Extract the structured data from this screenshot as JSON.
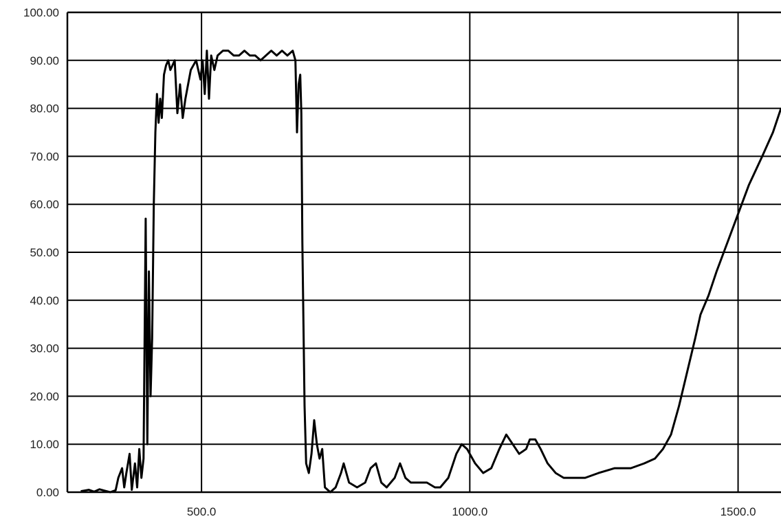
{
  "chart_data": {
    "type": "line",
    "xlim": [
      250,
      1580
    ],
    "ylim": [
      0,
      100
    ],
    "grid": true,
    "x_ticks": [
      {
        "value": 500,
        "label": "500.0"
      },
      {
        "value": 1000,
        "label": "1000.0"
      },
      {
        "value": 1500,
        "label": "1500.0"
      }
    ],
    "y_ticks": [
      {
        "value": 0,
        "label": "0.00"
      },
      {
        "value": 10,
        "label": "10.00"
      },
      {
        "value": 20,
        "label": "20.00"
      },
      {
        "value": 30,
        "label": "30.00"
      },
      {
        "value": 40,
        "label": "40.00"
      },
      {
        "value": 50,
        "label": "50.00"
      },
      {
        "value": 60,
        "label": "60.00"
      },
      {
        "value": 70,
        "label": "70.00"
      },
      {
        "value": 80,
        "label": "80.00"
      },
      {
        "value": 90,
        "label": "90.00"
      },
      {
        "value": 100,
        "label": "100.00"
      }
    ],
    "series": [
      {
        "color": "#000000",
        "points": [
          [
            275,
            0.2
          ],
          [
            290,
            0.5
          ],
          [
            300,
            0.1
          ],
          [
            310,
            0.6
          ],
          [
            320,
            0.3
          ],
          [
            330,
            0.0
          ],
          [
            340,
            0.4
          ],
          [
            345,
            3
          ],
          [
            352,
            5
          ],
          [
            356,
            1
          ],
          [
            360,
            4
          ],
          [
            366,
            8
          ],
          [
            370,
            0.5
          ],
          [
            376,
            6
          ],
          [
            380,
            1
          ],
          [
            384,
            9
          ],
          [
            388,
            3
          ],
          [
            392,
            7
          ],
          [
            396,
            57
          ],
          [
            399,
            10
          ],
          [
            402,
            46
          ],
          [
            405,
            20
          ],
          [
            408,
            32
          ],
          [
            411,
            60
          ],
          [
            414,
            75
          ],
          [
            417,
            83
          ],
          [
            420,
            77
          ],
          [
            423,
            82
          ],
          [
            426,
            78
          ],
          [
            430,
            87
          ],
          [
            434,
            89
          ],
          [
            438,
            90
          ],
          [
            442,
            88
          ],
          [
            446,
            89
          ],
          [
            450,
            90
          ],
          [
            455,
            79
          ],
          [
            460,
            85
          ],
          [
            465,
            78
          ],
          [
            470,
            82
          ],
          [
            475,
            85
          ],
          [
            480,
            88
          ],
          [
            485,
            89
          ],
          [
            490,
            90
          ],
          [
            494,
            88
          ],
          [
            498,
            86
          ],
          [
            502,
            90
          ],
          [
            506,
            83
          ],
          [
            510,
            92
          ],
          [
            514,
            82
          ],
          [
            518,
            91
          ],
          [
            524,
            88
          ],
          [
            530,
            91
          ],
          [
            540,
            92
          ],
          [
            550,
            92
          ],
          [
            560,
            91
          ],
          [
            570,
            91
          ],
          [
            580,
            92
          ],
          [
            590,
            91
          ],
          [
            600,
            91
          ],
          [
            610,
            90
          ],
          [
            620,
            91
          ],
          [
            630,
            92
          ],
          [
            640,
            91
          ],
          [
            650,
            92
          ],
          [
            660,
            91
          ],
          [
            670,
            92
          ],
          [
            675,
            90
          ],
          [
            678,
            75
          ],
          [
            681,
            85
          ],
          [
            684,
            87
          ],
          [
            686,
            79
          ],
          [
            688,
            52
          ],
          [
            690,
            35
          ],
          [
            692,
            18
          ],
          [
            695,
            6
          ],
          [
            700,
            4
          ],
          [
            705,
            8
          ],
          [
            710,
            15
          ],
          [
            715,
            10
          ],
          [
            720,
            7
          ],
          [
            725,
            9
          ],
          [
            730,
            1
          ],
          [
            740,
            0
          ],
          [
            750,
            1
          ],
          [
            760,
            4
          ],
          [
            765,
            6
          ],
          [
            770,
            4
          ],
          [
            775,
            2
          ],
          [
            790,
            1
          ],
          [
            805,
            2
          ],
          [
            815,
            5
          ],
          [
            825,
            6
          ],
          [
            835,
            2
          ],
          [
            845,
            1
          ],
          [
            860,
            3
          ],
          [
            870,
            6
          ],
          [
            880,
            3
          ],
          [
            890,
            2
          ],
          [
            905,
            2
          ],
          [
            920,
            2
          ],
          [
            935,
            1
          ],
          [
            945,
            1
          ],
          [
            960,
            3
          ],
          [
            975,
            8
          ],
          [
            985,
            10
          ],
          [
            995,
            9
          ],
          [
            1010,
            6
          ],
          [
            1025,
            4
          ],
          [
            1040,
            5
          ],
          [
            1055,
            9
          ],
          [
            1068,
            12
          ],
          [
            1080,
            10
          ],
          [
            1092,
            8
          ],
          [
            1105,
            9
          ],
          [
            1112,
            11
          ],
          [
            1122,
            11
          ],
          [
            1132,
            9
          ],
          [
            1145,
            6
          ],
          [
            1160,
            4
          ],
          [
            1175,
            3
          ],
          [
            1195,
            3
          ],
          [
            1215,
            3
          ],
          [
            1240,
            4
          ],
          [
            1270,
            5
          ],
          [
            1300,
            5
          ],
          [
            1325,
            6
          ],
          [
            1345,
            7
          ],
          [
            1360,
            9
          ],
          [
            1375,
            12
          ],
          [
            1390,
            18
          ],
          [
            1405,
            25
          ],
          [
            1420,
            32
          ],
          [
            1430,
            37
          ],
          [
            1445,
            41
          ],
          [
            1460,
            46
          ],
          [
            1480,
            52
          ],
          [
            1500,
            58
          ],
          [
            1520,
            64
          ],
          [
            1545,
            70
          ],
          [
            1565,
            75
          ],
          [
            1580,
            80
          ]
        ]
      }
    ]
  }
}
